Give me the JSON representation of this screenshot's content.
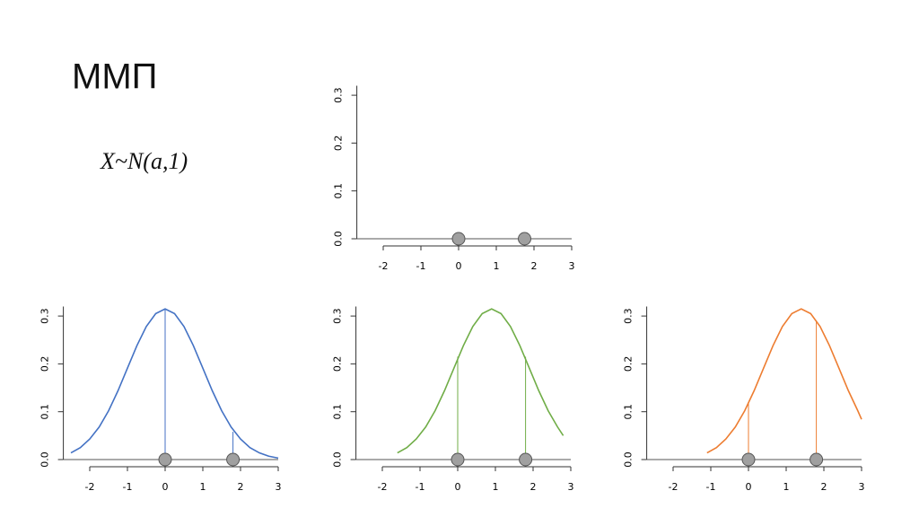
{
  "slide": {
    "title": "ММП",
    "formula": "X~N(a,1)"
  },
  "chart_data": [
    {
      "type": "scatter",
      "x": [
        0,
        1.75
      ],
      "values": [
        0,
        0
      ],
      "color": "#a0a0a0",
      "xlim": [
        -2.7,
        3
      ],
      "ylim": [
        0,
        0.32
      ],
      "xticks": [
        -2,
        -1,
        0,
        1,
        2,
        3
      ],
      "yticks": [
        {
          "value": 0,
          "label": "0.0"
        },
        0.1,
        0.2,
        0.3
      ]
    },
    {
      "type": "line",
      "color": "#4472c4",
      "x": [
        -2.5,
        -2.25,
        -2,
        -1.75,
        -1.5,
        -1.25,
        -1,
        -0.75,
        -0.5,
        -0.25,
        0,
        0.25,
        0.5,
        0.75,
        1,
        1.25,
        1.5,
        1.75,
        2,
        2.25,
        2.5,
        2.75,
        3
      ],
      "values": [
        0.014,
        0.025,
        0.043,
        0.068,
        0.102,
        0.144,
        0.191,
        0.238,
        0.278,
        0.305,
        0.315,
        0.305,
        0.278,
        0.238,
        0.191,
        0.144,
        0.102,
        0.068,
        0.043,
        0.025,
        0.014,
        0.007,
        0.003
      ],
      "drops_x": [
        0,
        1.8
      ],
      "drops": [
        0.315,
        0.058
      ],
      "markers_x": [
        0,
        1.8
      ],
      "markers": [
        0,
        0
      ],
      "marker_color": "#a0a0a0",
      "xlim": [
        -2.7,
        3
      ],
      "ylim": [
        0,
        0.32
      ],
      "xticks": [
        -2,
        -1,
        0,
        1,
        2,
        3
      ],
      "yticks": [
        {
          "value": 0,
          "label": "0.0"
        },
        0.1,
        0.2,
        0.3
      ]
    },
    {
      "type": "line",
      "color": "#70ad47",
      "x": [
        -1.6,
        -1.35,
        -1.1,
        -0.85,
        -0.6,
        -0.35,
        -0.1,
        0.15,
        0.4,
        0.65,
        0.9,
        1.15,
        1.4,
        1.65,
        1.9,
        2.15,
        2.4,
        2.65,
        2.8
      ],
      "values": [
        0.014,
        0.025,
        0.043,
        0.068,
        0.102,
        0.144,
        0.191,
        0.238,
        0.278,
        0.305,
        0.315,
        0.305,
        0.278,
        0.238,
        0.191,
        0.144,
        0.102,
        0.068,
        0.05
      ],
      "drops_x": [
        0,
        1.8
      ],
      "drops": [
        0.215,
        0.215
      ],
      "markers_x": [
        0,
        1.8
      ],
      "markers": [
        0,
        0
      ],
      "marker_color": "#a0a0a0",
      "xlim": [
        -2.7,
        3
      ],
      "ylim": [
        0,
        0.32
      ],
      "xticks": [
        -2,
        -1,
        0,
        1,
        2,
        3
      ],
      "yticks": [
        {
          "value": 0,
          "label": "0.0"
        },
        0.1,
        0.2,
        0.3
      ]
    },
    {
      "type": "line",
      "color": "#ed7d31",
      "x": [
        -1.1,
        -0.85,
        -0.6,
        -0.35,
        -0.1,
        0.15,
        0.4,
        0.65,
        0.9,
        1.15,
        1.4,
        1.65,
        1.9,
        2.15,
        2.4,
        2.65,
        2.9,
        3
      ],
      "values": [
        0.014,
        0.025,
        0.043,
        0.068,
        0.102,
        0.144,
        0.191,
        0.238,
        0.278,
        0.305,
        0.315,
        0.305,
        0.278,
        0.238,
        0.191,
        0.144,
        0.102,
        0.084
      ],
      "drops_x": [
        0,
        1.8
      ],
      "drops": [
        0.118,
        0.291
      ],
      "markers_x": [
        0,
        1.8
      ],
      "markers": [
        0,
        0
      ],
      "marker_color": "#a0a0a0",
      "xlim": [
        -2.7,
        3
      ],
      "ylim": [
        0,
        0.32
      ],
      "xticks": [
        -2,
        -1,
        0,
        1,
        2,
        3
      ],
      "yticks": [
        {
          "value": 0,
          "label": "0.0"
        },
        0.1,
        0.2,
        0.3
      ]
    }
  ]
}
